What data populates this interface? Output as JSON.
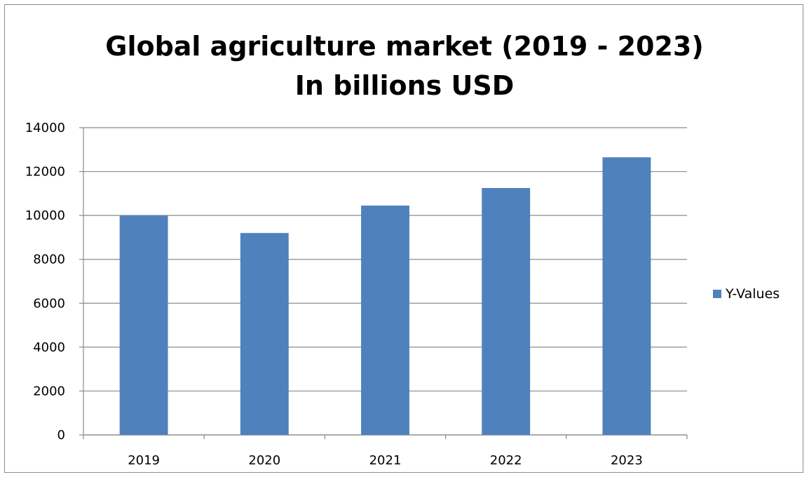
{
  "chart_data": {
    "type": "bar",
    "title_lines": [
      "Global agriculture market (2019 - 2023)",
      "In  billions USD"
    ],
    "categories": [
      "2019",
      "2020",
      "2021",
      "2022",
      "2023"
    ],
    "series": [
      {
        "name": "Y-Values",
        "values": [
          10000,
          9200,
          10450,
          11250,
          12650
        ],
        "color": "#4f81bd"
      }
    ],
    "ylim": [
      0,
      14000
    ],
    "yticks": [
      0,
      2000,
      4000,
      6000,
      8000,
      10000,
      12000,
      14000
    ],
    "grid": true,
    "legend_position": "right"
  }
}
